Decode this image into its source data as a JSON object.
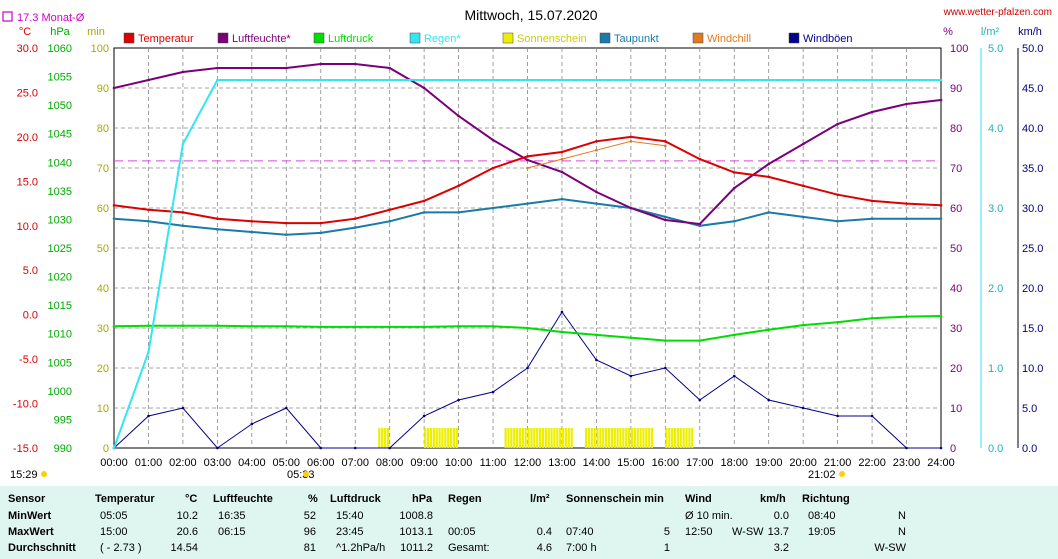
{
  "title": "Mittwoch, 15.07.2020",
  "website": "www.wetter-pfalzen.com",
  "month_avg_label": "17.3 Monat-Ø",
  "units_left": [
    "°C",
    "hPa",
    "min"
  ],
  "units_right": [
    "%",
    "l/m²",
    "km/h"
  ],
  "sunrise": "05:33",
  "sunset": "21:02",
  "corner_time": "15:29",
  "colors": {
    "temperature": "#dd0000",
    "humidity": "#7a007a",
    "pressure": "#00dd00",
    "rain": "#33e6f0",
    "sunshine": "#eeee00",
    "dewpoint": "#1a7aa8",
    "windchill": "#e07a20",
    "gusts": "#00008b",
    "avg_line": "#dd44dd"
  },
  "legend": [
    {
      "label": "Temperatur",
      "color": "#dd0000"
    },
    {
      "label": "Luftfeuchte*",
      "color": "#7a007a"
    },
    {
      "label": "Luftdruck",
      "color": "#00dd00"
    },
    {
      "label": "Regen*",
      "color": "#33e6f0"
    },
    {
      "label": "Sonnenschein",
      "color": "#eeee00"
    },
    {
      "label": "Taupunkt",
      "color": "#1a7aa8"
    },
    {
      "label": "Windchill",
      "color": "#e07a20"
    },
    {
      "label": "Windböen",
      "color": "#00008b"
    }
  ],
  "chart_data": {
    "type": "line",
    "title": "Mittwoch, 15.07.2020",
    "x": [
      "00:00",
      "01:00",
      "02:00",
      "03:00",
      "04:00",
      "05:00",
      "06:00",
      "07:00",
      "08:00",
      "09:00",
      "10:00",
      "11:00",
      "12:00",
      "13:00",
      "14:00",
      "15:00",
      "16:00",
      "17:00",
      "18:00",
      "19:00",
      "20:00",
      "21:00",
      "22:00",
      "23:00",
      "24:00"
    ],
    "axes": {
      "temperature_c": {
        "ticks": [
          "30.0",
          "25.0",
          "20.0",
          "15.0",
          "10.0",
          "5.0",
          "0.0",
          "-5.0",
          "-10.0",
          "-15.0"
        ],
        "ylim": [
          -15,
          30
        ]
      },
      "pressure_hpa": {
        "ticks": [
          "1060",
          "1055",
          "1050",
          "1045",
          "1040",
          "1035",
          "1030",
          "1025",
          "1020",
          "1015",
          "1010",
          "1005",
          "1000",
          "995",
          "990"
        ],
        "ylim": [
          990,
          1060
        ]
      },
      "sunshine_min": {
        "ticks": [
          "100",
          "90",
          "80",
          "70",
          "60",
          "50",
          "40",
          "30",
          "20",
          "10",
          "0"
        ],
        "ylim": [
          0,
          100
        ]
      },
      "humidity_pct": {
        "ticks": [
          "100",
          "90",
          "80",
          "70",
          "60",
          "50",
          "40",
          "30",
          "20",
          "10",
          "0"
        ],
        "ylim": [
          0,
          100
        ]
      },
      "rain_lm2": {
        "ticks": [
          "5.0",
          "4.0",
          "3.0",
          "2.0",
          "1.0",
          "0.0"
        ],
        "ylim": [
          0,
          5
        ]
      },
      "wind_kmh": {
        "ticks": [
          "50.0",
          "45.0",
          "40.0",
          "35.0",
          "30.0",
          "25.0",
          "20.0",
          "15.0",
          "10.0",
          "5.0",
          "0.0"
        ],
        "ylim": [
          0,
          50
        ]
      }
    },
    "grid": true,
    "month_avg_temp": 17.3,
    "series": [
      {
        "name": "Temperatur",
        "unit": "°C",
        "values": [
          12.3,
          11.8,
          11.5,
          10.8,
          10.5,
          10.3,
          10.3,
          10.8,
          11.8,
          12.8,
          14.5,
          16.5,
          17.8,
          18.3,
          19.5,
          20.0,
          19.5,
          17.5,
          16.0,
          15.5,
          14.5,
          13.5,
          12.8,
          12.5,
          12.3
        ]
      },
      {
        "name": "Luftfeuchte*",
        "unit": "%",
        "values": [
          90,
          92,
          94,
          95,
          95,
          95,
          96,
          96,
          95,
          90,
          83,
          77,
          72,
          69,
          64,
          60,
          57,
          56,
          65,
          71,
          76,
          81,
          84,
          86,
          87
        ]
      },
      {
        "name": "Luftdruck",
        "unit": "hPa",
        "values": [
          1011.3,
          1011.4,
          1011.4,
          1011.4,
          1011.3,
          1011.3,
          1011.2,
          1011.2,
          1011.2,
          1011.2,
          1011.3,
          1011.3,
          1011.0,
          1010.3,
          1009.8,
          1009.3,
          1008.8,
          1008.8,
          1009.8,
          1010.7,
          1011.5,
          1012.0,
          1012.7,
          1013.0,
          1013.1
        ]
      },
      {
        "name": "Regen*",
        "unit": "l/m²",
        "values": [
          0.0,
          1.2,
          3.8,
          4.6,
          4.6,
          4.6,
          4.6,
          4.6,
          4.6,
          4.6,
          4.6,
          4.6,
          4.6,
          4.6,
          4.6,
          4.6,
          4.6,
          4.6,
          4.6,
          4.6,
          4.6,
          4.6,
          4.6,
          4.6,
          4.6
        ]
      },
      {
        "name": "Taupunkt",
        "unit": "°C",
        "values": [
          10.8,
          10.5,
          10.0,
          9.6,
          9.3,
          9.0,
          9.2,
          9.8,
          10.5,
          11.5,
          11.5,
          12.0,
          12.5,
          13.0,
          12.5,
          12.0,
          11.0,
          10.0,
          10.5,
          11.5,
          11.0,
          10.5,
          10.8,
          10.8,
          10.8
        ]
      },
      {
        "name": "Windchill",
        "unit": "°C",
        "values": [
          null,
          null,
          null,
          null,
          null,
          null,
          null,
          null,
          null,
          null,
          null,
          null,
          16.5,
          17.5,
          18.5,
          19.5,
          19.0,
          null,
          null,
          null,
          null,
          null,
          null,
          null,
          null
        ]
      },
      {
        "name": "Windböen",
        "unit": "km/h",
        "values": [
          0,
          4,
          5,
          0,
          3,
          5,
          0,
          0,
          0,
          4,
          6,
          7,
          10,
          17,
          11,
          9,
          10,
          6,
          9,
          6,
          5,
          4,
          4,
          0,
          0
        ]
      }
    ],
    "sunshine_minutes_per_5min": [
      {
        "start": "07:40",
        "end": "08:00",
        "value": 5
      },
      {
        "start": "09:00",
        "end": "10:00",
        "value": 5
      },
      {
        "start": "11:20",
        "end": "13:20",
        "value": 5
      },
      {
        "start": "13:40",
        "end": "15:40",
        "value": 5
      },
      {
        "start": "16:00",
        "end": "16:50",
        "value": 5
      }
    ]
  },
  "stats": {
    "headers": {
      "sensor": "Sensor",
      "temp": "Temperatur",
      "temp_unit": "°C",
      "hum": "Luftfeuchte",
      "hum_unit": "%",
      "press": "Luftdruck",
      "press_unit": "hPa",
      "rain": "Regen",
      "rain_unit": "l/m²",
      "sun": "Sonnenschein min",
      "wind": "Wind",
      "wind_unit": "km/h",
      "dir": "Richtung"
    },
    "rows": [
      {
        "label": "MinWert",
        "temp_time": "05:05",
        "temp_val": "10.2",
        "hum_time": "16:35",
        "hum_val": "52",
        "press_time": "15:40",
        "press_val": "1008.8",
        "rain_time": "",
        "rain_val": "",
        "sun_time": "",
        "sun_val": "",
        "wind_time": "Ø 10 min.",
        "wind_dir": "",
        "wind_val": "0.0",
        "dir_time": "08:40",
        "dir_val": "N"
      },
      {
        "label": "MaxWert",
        "temp_time": "15:00",
        "temp_val": "20.6",
        "hum_time": "06:15",
        "hum_val": "96",
        "press_time": "23:45",
        "press_val": "1013.1",
        "rain_time": "00:05",
        "rain_val": "0.4",
        "sun_time": "07:40",
        "sun_val": "5",
        "wind_time": "12:50",
        "wind_dir": "W-SW",
        "wind_val": "13.7",
        "dir_time": "19:05",
        "dir_val": "N"
      },
      {
        "label": "Durchschnitt",
        "temp_time": "( - 2.73 )",
        "temp_val": "14.54",
        "hum_time": "",
        "hum_val": "81",
        "press_time": "^1.2hPa/h",
        "press_val": "1011.2",
        "rain_time": "Gesamt:",
        "rain_val": "4.6",
        "sun_time": "7:00 h",
        "sun_val": "1",
        "wind_time": "",
        "wind_dir": "",
        "wind_val": "3.2",
        "dir_time": "",
        "dir_val": "W-SW"
      }
    ]
  }
}
